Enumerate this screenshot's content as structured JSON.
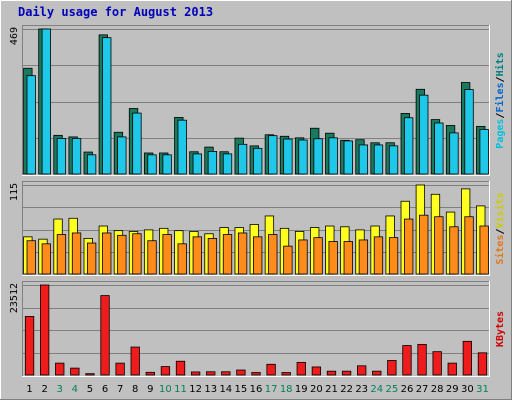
{
  "chart_data": {
    "type": "bar",
    "title": "Daily usage for August 2013",
    "days": [
      "1",
      "2",
      "3",
      "4",
      "5",
      "6",
      "7",
      "8",
      "9",
      "10",
      "11",
      "12",
      "13",
      "14",
      "15",
      "16",
      "17",
      "18",
      "19",
      "20",
      "21",
      "22",
      "23",
      "24",
      "25",
      "26",
      "27",
      "28",
      "29",
      "30",
      "31"
    ],
    "weekend_days": [
      "3",
      "4",
      "10",
      "11",
      "17",
      "18",
      "24",
      "25",
      "31"
    ],
    "panels": [
      {
        "id": "top",
        "max_label": "469",
        "ymax": 469,
        "legend": [
          {
            "text": "Hits",
            "color": "#00807f"
          },
          {
            "text": "/",
            "color": "#000000"
          },
          {
            "text": "Files",
            "color": "#0066cc"
          },
          {
            "text": "/",
            "color": "#000000"
          },
          {
            "text": "Pages",
            "color": "#00bfdf"
          }
        ],
        "series": [
          {
            "name": "Hits",
            "color": "#1a7a5e",
            "values": [
              342,
              469,
              125,
              120,
              71,
              450,
              135,
              212,
              68,
              68,
              183,
              72,
              87,
              72,
              116,
              91,
              127,
              122,
              117,
              148,
              132,
              109,
              111,
              101,
              101,
              196,
              274,
              176,
              157,
              296,
              154
            ]
          },
          {
            "name": "Files",
            "color": "#1fc7e8",
            "values": [
              318,
              469,
              115,
              115,
              62,
              441,
              120,
              197,
              62,
              62,
              174,
              65,
              73,
              65,
              96,
              83,
              124,
              113,
              110,
              114,
              117,
              107,
              94,
              94,
              91,
              182,
              255,
              165,
              133,
              273,
              144
            ]
          }
        ]
      },
      {
        "id": "middle",
        "max_label": "115",
        "ymax": 115,
        "legend": [
          {
            "text": "Visits",
            "color": "#cccc00"
          },
          {
            "text": "/",
            "color": "#000000"
          },
          {
            "text": "Sites",
            "color": "#e07818"
          }
        ],
        "series": [
          {
            "name": "Visits",
            "color": "#ffff20",
            "values": [
              48,
              45,
              71,
              72,
              46,
              62,
              56,
              55,
              57,
              59,
              56,
              55,
              52,
              60,
              60,
              64,
              75,
              59,
              55,
              60,
              62,
              61,
              57,
              62,
              75,
              94,
              115,
              103,
              80,
              110,
              88
            ]
          },
          {
            "name": "Sites",
            "color": "#ff8c1a",
            "values": [
              43,
              39,
              51,
              53,
              40,
              53,
              50,
              52,
              43,
              51,
              39,
              48,
              46,
              51,
              53,
              48,
              51,
              36,
              44,
              47,
              42,
              42,
              44,
              48,
              47,
              71,
              76,
              74,
              61,
              74,
              62
            ]
          }
        ]
      },
      {
        "id": "bottom",
        "max_label": "23512",
        "ymax": 23512,
        "legend": [
          {
            "text": "KBytes",
            "color": "#cc0000"
          }
        ],
        "series": [
          {
            "name": "KBytes",
            "color": "#ee1c1c",
            "values": [
              15300,
              23512,
              3100,
              1800,
              350,
              20750,
              3100,
              7300,
              700,
              2200,
              3600,
              800,
              850,
              850,
              1300,
              650,
              2800,
              650,
              3300,
              2100,
              1000,
              1000,
              2400,
              1000,
              3800,
              7700,
              8000,
              6100,
              3100,
              8800,
              5800
            ]
          }
        ]
      }
    ]
  }
}
